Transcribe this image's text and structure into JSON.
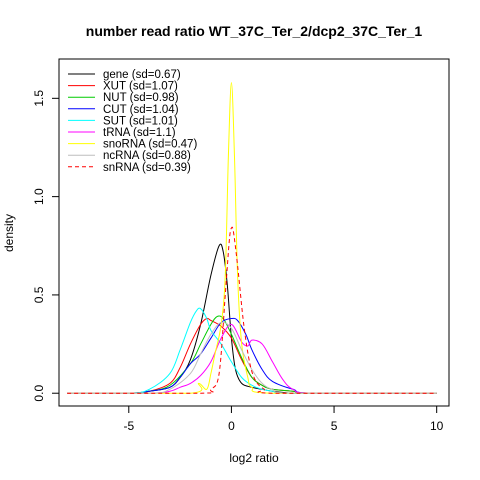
{
  "chart_data": {
    "type": "line",
    "title": "number read ratio WT_37C_Ter_2/dcp2_37C_Ter_1",
    "xlabel": "log2 ratio",
    "ylabel": "density",
    "xlim": [
      -8.4,
      10.6
    ],
    "ylim": [
      -0.065,
      1.7
    ],
    "xticks": [
      -5,
      0,
      5,
      10
    ],
    "xtick_labels": [
      "-5",
      "0",
      "5",
      "10"
    ],
    "yticks": [
      0,
      0.5,
      1.0,
      1.5
    ],
    "ytick_labels": [
      "0.0",
      "0.5",
      "1.0",
      "1.5"
    ],
    "grid": false,
    "legend_position": "top-left",
    "series": [
      {
        "name": "gene (sd=0.67)",
        "color": "#000000",
        "dashed": false,
        "x": [
          -8,
          -5,
          -4,
          -3,
          -2.5,
          -2,
          -1.5,
          -1,
          -0.6,
          -0.4,
          -0.2,
          0,
          0.2,
          0.5,
          1,
          1.5,
          2,
          3,
          4,
          10
        ],
        "y": [
          0,
          0,
          0.01,
          0.03,
          0.08,
          0.17,
          0.35,
          0.6,
          0.75,
          0.72,
          0.55,
          0.28,
          0.12,
          0.05,
          0.03,
          0.02,
          0.01,
          0,
          0,
          0
        ]
      },
      {
        "name": "XUT (sd=1.07)",
        "color": "#ff0000",
        "dashed": false,
        "x": [
          -8,
          -5,
          -4,
          -3,
          -2.5,
          -2,
          -1.5,
          -1.2,
          -1,
          -0.5,
          0,
          0.5,
          1,
          1.5,
          2,
          3,
          4,
          10
        ],
        "y": [
          0,
          0,
          0.01,
          0.05,
          0.13,
          0.25,
          0.35,
          0.38,
          0.37,
          0.34,
          0.28,
          0.17,
          0.08,
          0.04,
          0.02,
          0.01,
          0,
          0
        ]
      },
      {
        "name": "NUT (sd=0.98)",
        "color": "#00cc00",
        "dashed": false,
        "x": [
          -8,
          -5,
          -4,
          -3,
          -2,
          -1.5,
          -1,
          -0.7,
          -0.4,
          0,
          0.5,
          1,
          1.5,
          2,
          3,
          4,
          10
        ],
        "y": [
          0,
          0,
          0.01,
          0.04,
          0.15,
          0.25,
          0.35,
          0.39,
          0.38,
          0.3,
          0.18,
          0.08,
          0.04,
          0.02,
          0.01,
          0,
          0
        ]
      },
      {
        "name": "CUT (sd=1.04)",
        "color": "#0000ff",
        "dashed": false,
        "x": [
          -8,
          -5,
          -4,
          -3,
          -2.5,
          -2,
          -1.5,
          -1,
          -0.5,
          0,
          0.3,
          0.7,
          1,
          1.5,
          2,
          3,
          4,
          10
        ],
        "y": [
          0,
          0,
          0.01,
          0.03,
          0.08,
          0.15,
          0.2,
          0.28,
          0.36,
          0.38,
          0.37,
          0.3,
          0.22,
          0.12,
          0.06,
          0.02,
          0,
          0
        ]
      },
      {
        "name": "SUT (sd=1.01)",
        "color": "#00ffff",
        "dashed": false,
        "x": [
          -8,
          -5,
          -4,
          -3,
          -2.5,
          -2,
          -1.7,
          -1.5,
          -1.2,
          -1,
          -0.5,
          0,
          0.5,
          1,
          1.5,
          2,
          3,
          10
        ],
        "y": [
          0,
          0,
          0.02,
          0.1,
          0.22,
          0.36,
          0.42,
          0.43,
          0.38,
          0.32,
          0.25,
          0.16,
          0.08,
          0.04,
          0.02,
          0.01,
          0,
          0
        ]
      },
      {
        "name": "tRNA (sd=1.1)",
        "color": "#ff00ff",
        "dashed": false,
        "x": [
          -8,
          -4,
          -3,
          -2.5,
          -2,
          -1.5,
          -1,
          -0.5,
          0,
          0.5,
          0.8,
          1,
          1.5,
          2,
          2.5,
          3,
          4,
          10
        ],
        "y": [
          0,
          0,
          0.01,
          0.03,
          0.05,
          0.09,
          0.16,
          0.28,
          0.35,
          0.26,
          0.24,
          0.27,
          0.25,
          0.16,
          0.07,
          0.02,
          0,
          0
        ]
      },
      {
        "name": "snoRNA (sd=0.47)",
        "color": "#ffff00",
        "dashed": false,
        "x": [
          -8,
          -2,
          -1.6,
          -1.2,
          -1,
          -0.8,
          -0.5,
          -0.3,
          -0.15,
          0,
          0.15,
          0.3,
          0.5,
          0.8,
          1,
          2,
          10
        ],
        "y": [
          0,
          0,
          0.05,
          0.02,
          0.1,
          0.2,
          0.35,
          0.6,
          1.2,
          1.58,
          1.2,
          0.6,
          0.25,
          0.08,
          0.03,
          0,
          0
        ]
      },
      {
        "name": "ncRNA (sd=0.88)",
        "color": "#bebebe",
        "dashed": false,
        "x": [
          -8,
          -4,
          -3,
          -2,
          -1.5,
          -1,
          -0.5,
          0,
          0.5,
          1,
          1.5,
          2,
          3,
          10
        ],
        "y": [
          0,
          0,
          0.02,
          0.1,
          0.2,
          0.3,
          0.36,
          0.33,
          0.22,
          0.12,
          0.05,
          0.02,
          0,
          0
        ]
      },
      {
        "name": "snRNA (sd=0.39)",
        "color": "#ff0000",
        "dashed": true,
        "x": [
          -8,
          -1.5,
          -1,
          -0.6,
          -0.3,
          -0.1,
          0,
          0.1,
          0.3,
          0.6,
          0.9,
          1.2,
          1.6,
          2,
          10
        ],
        "y": [
          0,
          0,
          0.02,
          0.1,
          0.5,
          0.78,
          0.84,
          0.82,
          0.65,
          0.35,
          0.15,
          0.06,
          0.02,
          0,
          0
        ]
      }
    ]
  }
}
